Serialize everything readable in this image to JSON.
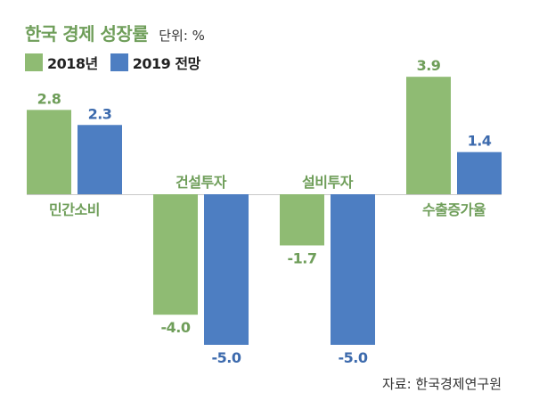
{
  "header": {
    "title": "한국 경제 성장률",
    "unit": "단위: %"
  },
  "source": "자료: 한국경제연구원",
  "colors": {
    "series_2018": "#8fbb73",
    "series_2019": "#4d7ec2",
    "baseline": "#c8c8c8",
    "category_text": "#6f9e5a",
    "value_text_2018": "#6f9e5a",
    "value_text_2019": "#3c6aad"
  },
  "chart_data": {
    "type": "bar",
    "categories": [
      "민간소비",
      "건설투자",
      "설비투자",
      "수출증가율"
    ],
    "series": [
      {
        "name": "2018년",
        "values": [
          2.8,
          -4.0,
          -1.7,
          3.9
        ],
        "labels": [
          "2.8",
          "-4.0",
          "-1.7",
          "3.9"
        ]
      },
      {
        "name": "2019 전망",
        "values": [
          2.3,
          -5.0,
          -5.0,
          1.4
        ],
        "labels": [
          "2.3",
          "-5.0",
          "-5.0",
          "1.4"
        ]
      }
    ],
    "ylim": [
      -5.0,
      3.9
    ],
    "grid": false,
    "legend_position": "top-left",
    "title": "한국 경제 성장률",
    "ylabel": "",
    "xlabel": ""
  }
}
